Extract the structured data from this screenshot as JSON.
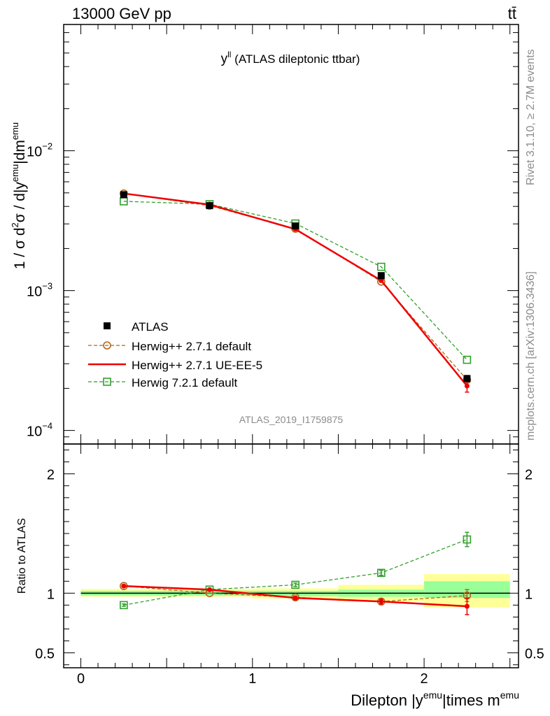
{
  "header": {
    "left": "13000 GeV pp",
    "right": "tt̄"
  },
  "side_labels": {
    "rivet": "Rivet 3.1.10, ≥ 2.7M events",
    "mcplots": "mcplots.cern.ch [arXiv:1306.3436]"
  },
  "chart_data": [
    {
      "type": "line",
      "title": {
        "main": "y",
        "sup": "ll",
        "rest": " (ATLAS dileptonic ttbar)"
      },
      "watermark": "ATLAS_2019_I1759875",
      "ylabel": {
        "a": "1 / σ  d",
        "b": "2",
        "c": "σ / d|y",
        "d": "emu",
        "e": "|dm",
        "f": "emu"
      },
      "yscale": "log",
      "ylim": [
        8e-05,
        0.08
      ],
      "xlim": [
        -0.1,
        2.55
      ],
      "ytick_labels": [
        {
          "v": 0.01,
          "base": "10",
          "exp": "−2"
        },
        {
          "v": 0.001,
          "base": "10",
          "exp": "−3"
        },
        {
          "v": 0.0001,
          "base": "10",
          "exp": "−4"
        }
      ],
      "x": [
        0.25,
        0.75,
        1.25,
        1.75,
        2.25
      ],
      "x_edges": [
        0,
        0.5,
        1,
        1.5,
        2,
        2.5
      ],
      "series": [
        {
          "name": "ATLAS",
          "color": "#000000",
          "values": [
            0.00485,
            0.00405,
            0.0029,
            0.00128,
            0.000235
          ],
          "errors": [
            7e-05,
            6e-05,
            5e-05,
            3e-05,
            1.2e-05
          ]
        },
        {
          "name": "Herwig++ 2.7.1 default",
          "color": "#b5651d",
          "values": [
            0.00495,
            0.00405,
            0.00277,
            0.00116,
            0.00023
          ]
        },
        {
          "name": "Herwig++ 2.7.1 UE-EE-5",
          "color": "#ee0000",
          "values": [
            0.00495,
            0.00412,
            0.00275,
            0.00118,
            0.000208
          ],
          "errors": [
            5e-05,
            5e-05,
            4e-05,
            3e-05,
            2e-05
          ]
        },
        {
          "name": "Herwig 7.2.1 default",
          "color": "#33a02c",
          "values": [
            0.00435,
            0.00415,
            0.00302,
            0.00148,
            0.00032
          ]
        }
      ],
      "legend_placement": "lower-left"
    },
    {
      "type": "line",
      "ylabel": "Ratio to ATLAS",
      "ylim": [
        0.375,
        2.25
      ],
      "ytick_labels": [
        {
          "v": 2,
          "text": "2"
        },
        {
          "v": 1,
          "text": "1"
        },
        {
          "v": 0.5,
          "text": "0.5"
        }
      ],
      "xlabel": {
        "a": "Dilepton |y",
        "b": "emu",
        "c": "|times m",
        "d": "emu"
      },
      "xtick_labels": [
        {
          "v": 0,
          "text": "0"
        },
        {
          "v": 1,
          "text": "1"
        },
        {
          "v": 2,
          "text": "2"
        }
      ],
      "bands": [
        {
          "x0": 0,
          "x1": 0.5,
          "y1_lo": 0.98,
          "y1_hi": 1.02,
          "y2_lo": 0.97,
          "y2_hi": 1.035
        },
        {
          "x0": 0.5,
          "x1": 1,
          "y1_lo": 0.98,
          "y1_hi": 1.02,
          "y2_lo": 0.97,
          "y2_hi": 1.035
        },
        {
          "x0": 1,
          "x1": 1.5,
          "y1_lo": 0.975,
          "y1_hi": 1.02,
          "y2_lo": 0.955,
          "y2_hi": 1.04
        },
        {
          "x0": 1.5,
          "x1": 2,
          "y1_lo": 0.97,
          "y1_hi": 1.03,
          "y2_lo": 0.93,
          "y2_hi": 1.07
        },
        {
          "x0": 2,
          "x1": 2.5,
          "y1_lo": 0.96,
          "y1_hi": 1.1,
          "y2_lo": 0.88,
          "y2_hi": 1.16
        }
      ],
      "series": [
        {
          "name": "Herwig++ 2.7.1 default",
          "color": "#b5651d",
          "values": [
            1.06,
            1.0,
            0.965,
            0.93,
            0.98
          ],
          "errors": [
            0,
            0,
            0,
            0,
            0.05
          ]
        },
        {
          "name": "Herwig++ 2.7.1 UE-EE-5",
          "color": "#ee0000",
          "values": [
            1.06,
            1.03,
            0.96,
            0.93,
            0.89
          ],
          "errors": [
            0.01,
            0.01,
            0.015,
            0.02,
            0.07
          ]
        },
        {
          "name": "Herwig 7.2.1 default",
          "color": "#33a02c",
          "values": [
            0.9,
            1.03,
            1.07,
            1.17,
            1.45
          ],
          "errors": [
            0.01,
            0.01,
            0.015,
            0.02,
            0.06
          ]
        }
      ]
    }
  ]
}
